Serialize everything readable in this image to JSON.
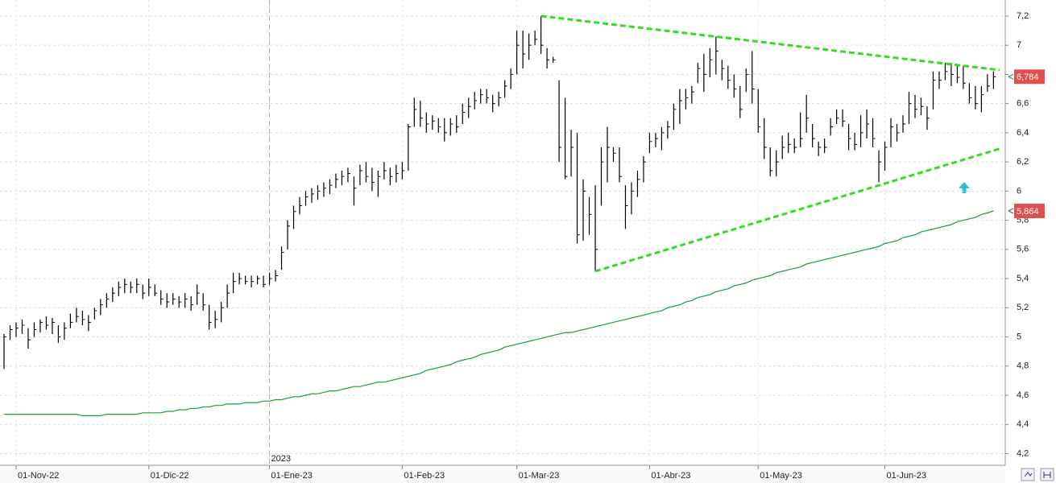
{
  "chart_data": {
    "type": "ohlc",
    "color": "#000000",
    "grid": true,
    "ylim": [
      4.12,
      7.31
    ],
    "yticks": [
      {
        "value": 4.2,
        "label": "4,2"
      },
      {
        "value": 4.4,
        "label": "4,4"
      },
      {
        "value": 4.6,
        "label": "4,6"
      },
      {
        "value": 4.8,
        "label": "4,8"
      },
      5,
      {
        "value": 5.2,
        "label": "5,2"
      },
      {
        "value": 5.4,
        "label": "5,4"
      },
      {
        "value": 5.6,
        "label": "5,6"
      },
      {
        "value": 5.8,
        "label": "5,8"
      },
      6,
      {
        "value": 6.2,
        "label": "6,2"
      },
      {
        "value": 6.4,
        "label": "6,4"
      },
      {
        "value": 6.6,
        "label": "6,6"
      },
      {
        "value": 6.8,
        "label": "6,8"
      },
      7,
      {
        "value": 7.2,
        "label": "7,2"
      }
    ],
    "categories": [
      null,
      null,
      "01-Nov-22",
      null,
      null,
      null,
      null,
      null,
      null,
      null,
      null,
      null,
      null,
      null,
      null,
      null,
      null,
      null,
      null,
      null,
      null,
      null,
      null,
      null,
      "01-Dic-22",
      null,
      null,
      null,
      null,
      null,
      null,
      null,
      null,
      null,
      null,
      null,
      null,
      null,
      null,
      null,
      null,
      null,
      null,
      null,
      "01-Ene-23",
      null,
      null,
      null,
      null,
      null,
      null,
      null,
      null,
      null,
      null,
      null,
      null,
      null,
      null,
      null,
      null,
      null,
      null,
      null,
      null,
      null,
      "01-Feb-23",
      null,
      null,
      null,
      null,
      null,
      null,
      null,
      null,
      null,
      null,
      null,
      null,
      null,
      null,
      null,
      null,
      null,
      null,
      "01-Mar-23",
      null,
      null,
      null,
      null,
      null,
      null,
      null,
      null,
      null,
      null,
      null,
      null,
      null,
      null,
      null,
      null,
      null,
      null,
      null,
      null,
      null,
      "01-Abr-23",
      null,
      null,
      null,
      null,
      null,
      null,
      null,
      null,
      null,
      null,
      null,
      null,
      null,
      null,
      null,
      null,
      null,
      "01-May-23",
      null,
      null,
      null,
      null,
      null,
      null,
      null,
      null,
      null,
      null,
      null,
      null,
      null,
      null,
      null,
      null,
      null,
      null,
      null,
      null,
      "01-Jun-23",
      null,
      null,
      null,
      null,
      null,
      null,
      null,
      null,
      null,
      null,
      null,
      null,
      null,
      null,
      null,
      null,
      null,
      null
    ],
    "high": [
      5.02,
      5.08,
      5.1,
      5.12,
      5.06,
      5.1,
      5.12,
      5.14,
      5.13,
      5.08,
      5.1,
      5.16,
      5.2,
      5.18,
      5.15,
      5.2,
      5.26,
      5.3,
      5.34,
      5.38,
      5.4,
      5.38,
      5.4,
      5.36,
      5.4,
      5.36,
      5.32,
      5.3,
      5.3,
      5.28,
      5.3,
      5.28,
      5.36,
      5.3,
      5.22,
      5.18,
      5.24,
      5.36,
      5.44,
      5.44,
      5.42,
      5.42,
      5.42,
      5.42,
      5.44,
      5.46,
      5.62,
      5.8,
      5.9,
      5.96,
      6.0,
      6.02,
      6.04,
      6.06,
      6.08,
      6.12,
      6.14,
      6.16,
      6.1,
      6.18,
      6.2,
      6.16,
      6.14,
      6.2,
      6.16,
      6.18,
      6.2,
      6.46,
      6.64,
      6.62,
      6.54,
      6.52,
      6.5,
      6.5,
      6.5,
      6.52,
      6.6,
      6.64,
      6.68,
      6.7,
      6.7,
      6.66,
      6.68,
      6.76,
      6.84,
      7.1,
      7.1,
      7.08,
      7.1,
      7.2,
      6.98,
      6.92,
      6.76,
      6.64,
      6.42,
      6.4,
      6.08,
      5.96,
      6.04,
      6.3,
      6.44,
      6.3,
      6.3,
      6.04,
      6.06,
      6.14,
      6.24,
      6.4,
      6.4,
      6.44,
      6.48,
      6.6,
      6.7,
      6.7,
      6.72,
      6.88,
      6.94,
      6.98,
      7.06,
      6.9,
      6.86,
      6.8,
      6.72,
      6.84,
      6.96,
      6.7,
      6.5,
      6.3,
      6.28,
      6.38,
      6.4,
      6.36,
      6.54,
      6.66,
      6.46,
      6.34,
      6.36,
      6.5,
      6.56,
      6.56,
      6.46,
      6.4,
      6.52,
      6.56,
      6.5,
      6.28,
      6.34,
      6.5,
      6.46,
      6.52,
      6.68,
      6.66,
      6.64,
      6.58,
      6.82,
      6.82,
      6.88,
      6.88,
      6.86,
      6.86,
      6.74,
      6.72,
      6.72,
      6.8,
      6.82
    ],
    "low": [
      4.78,
      4.98,
      5.0,
      5.02,
      4.92,
      5.0,
      5.03,
      5.05,
      5.02,
      4.96,
      4.98,
      5.06,
      5.1,
      5.08,
      5.04,
      5.12,
      5.15,
      5.2,
      5.24,
      5.28,
      5.3,
      5.3,
      5.3,
      5.26,
      5.28,
      5.28,
      5.22,
      5.2,
      5.22,
      5.2,
      5.2,
      5.18,
      5.22,
      5.18,
      5.05,
      5.06,
      5.1,
      5.2,
      5.3,
      5.36,
      5.36,
      5.34,
      5.36,
      5.34,
      5.36,
      5.38,
      5.46,
      5.6,
      5.74,
      5.84,
      5.9,
      5.92,
      5.94,
      5.96,
      5.98,
      6.02,
      6.04,
      6.06,
      5.9,
      6.04,
      6.06,
      6.0,
      5.96,
      6.08,
      6.04,
      6.06,
      6.08,
      6.14,
      6.44,
      6.44,
      6.4,
      6.42,
      6.4,
      6.34,
      6.38,
      6.4,
      6.46,
      6.5,
      6.56,
      6.6,
      6.6,
      6.54,
      6.58,
      6.64,
      6.7,
      6.8,
      6.84,
      6.9,
      7.0,
      6.94,
      6.84,
      6.88,
      6.2,
      6.08,
      6.1,
      5.64,
      5.66,
      5.7,
      5.45,
      5.9,
      6.06,
      6.2,
      6.06,
      5.74,
      5.84,
      5.96,
      6.06,
      6.26,
      6.3,
      6.28,
      6.36,
      6.42,
      6.46,
      6.56,
      6.6,
      6.74,
      6.68,
      6.78,
      6.8,
      6.76,
      6.7,
      6.64,
      6.5,
      6.68,
      6.6,
      6.4,
      6.22,
      6.1,
      6.1,
      6.22,
      6.26,
      6.26,
      6.3,
      6.4,
      6.3,
      6.24,
      6.26,
      6.38,
      6.46,
      6.44,
      6.28,
      6.28,
      6.3,
      6.36,
      6.3,
      6.06,
      6.14,
      6.3,
      6.34,
      6.4,
      6.46,
      6.5,
      6.52,
      6.42,
      6.56,
      6.7,
      6.76,
      6.72,
      6.74,
      6.7,
      6.6,
      6.56,
      6.54,
      6.68,
      6.7
    ],
    "close": [
      5.0,
      5.05,
      5.06,
      5.08,
      4.98,
      5.05,
      5.1,
      5.08,
      5.1,
      5.0,
      5.06,
      5.1,
      5.14,
      5.12,
      5.1,
      5.18,
      5.22,
      5.26,
      5.3,
      5.34,
      5.36,
      5.34,
      5.36,
      5.3,
      5.34,
      5.3,
      5.26,
      5.24,
      5.26,
      5.24,
      5.26,
      5.22,
      5.3,
      5.22,
      5.1,
      5.12,
      5.2,
      5.3,
      5.38,
      5.4,
      5.38,
      5.38,
      5.4,
      5.36,
      5.4,
      5.42,
      5.58,
      5.76,
      5.86,
      5.9,
      5.96,
      5.98,
      6.0,
      6.02,
      6.04,
      6.08,
      6.1,
      6.12,
      6.02,
      6.14,
      6.1,
      6.06,
      6.1,
      6.14,
      6.1,
      6.12,
      6.14,
      6.44,
      6.56,
      6.5,
      6.46,
      6.48,
      6.44,
      6.4,
      6.46,
      6.44,
      6.54,
      6.58,
      6.62,
      6.66,
      6.64,
      6.6,
      6.64,
      6.72,
      6.8,
      7.0,
      6.94,
      7.0,
      7.04,
      7.0,
      6.9,
      6.9,
      6.3,
      6.1,
      6.3,
      5.7,
      6.0,
      5.84,
      5.6,
      6.2,
      6.3,
      6.26,
      6.1,
      5.9,
      6.0,
      6.08,
      6.2,
      6.34,
      6.36,
      6.4,
      6.44,
      6.56,
      6.62,
      6.64,
      6.68,
      6.84,
      6.8,
      6.9,
      6.96,
      6.84,
      6.76,
      6.7,
      6.56,
      6.8,
      6.7,
      6.44,
      6.3,
      6.14,
      6.2,
      6.3,
      6.32,
      6.3,
      6.36,
      6.5,
      6.36,
      6.3,
      6.3,
      6.44,
      6.5,
      6.48,
      6.36,
      6.32,
      6.4,
      6.46,
      6.36,
      6.2,
      6.3,
      6.44,
      6.4,
      6.46,
      6.6,
      6.56,
      6.58,
      6.5,
      6.76,
      6.76,
      6.82,
      6.8,
      6.78,
      6.74,
      6.64,
      6.6,
      6.66,
      6.72,
      6.784
    ],
    "moving_average": {
      "color": "#1f9a3c",
      "values": [
        4.47,
        4.47,
        4.47,
        4.47,
        4.47,
        4.47,
        4.47,
        4.47,
        4.47,
        4.47,
        4.47,
        4.47,
        4.47,
        4.46,
        4.46,
        4.46,
        4.46,
        4.47,
        4.47,
        4.47,
        4.47,
        4.47,
        4.47,
        4.48,
        4.48,
        4.48,
        4.48,
        4.49,
        4.49,
        4.5,
        4.5,
        4.51,
        4.51,
        4.52,
        4.52,
        4.53,
        4.53,
        4.54,
        4.54,
        4.54,
        4.55,
        4.55,
        4.55,
        4.56,
        4.56,
        4.57,
        4.57,
        4.58,
        4.59,
        4.59,
        4.6,
        4.61,
        4.61,
        4.62,
        4.63,
        4.63,
        4.64,
        4.65,
        4.66,
        4.66,
        4.67,
        4.68,
        4.69,
        4.69,
        4.7,
        4.71,
        4.72,
        4.73,
        4.74,
        4.75,
        4.77,
        4.78,
        4.79,
        4.8,
        4.81,
        4.83,
        4.84,
        4.85,
        4.86,
        4.88,
        4.89,
        4.9,
        4.91,
        4.93,
        4.94,
        4.95,
        4.96,
        4.97,
        4.98,
        4.99,
        5.0,
        5.01,
        5.02,
        5.03,
        5.03,
        5.04,
        5.05,
        5.06,
        5.07,
        5.08,
        5.09,
        5.1,
        5.11,
        5.12,
        5.13,
        5.14,
        5.15,
        5.16,
        5.17,
        5.18,
        5.2,
        5.21,
        5.22,
        5.24,
        5.25,
        5.27,
        5.28,
        5.29,
        5.31,
        5.32,
        5.33,
        5.35,
        5.36,
        5.37,
        5.39,
        5.4,
        5.41,
        5.42,
        5.44,
        5.45,
        5.46,
        5.47,
        5.48,
        5.5,
        5.51,
        5.52,
        5.53,
        5.54,
        5.55,
        5.56,
        5.57,
        5.58,
        5.59,
        5.6,
        5.61,
        5.62,
        5.64,
        5.65,
        5.66,
        5.68,
        5.69,
        5.7,
        5.72,
        5.73,
        5.74,
        5.75,
        5.76,
        5.77,
        5.79,
        5.8,
        5.81,
        5.82,
        5.84,
        5.85,
        5.864
      ]
    },
    "trendlines": [
      {
        "color": "#33dd22",
        "x": [
          89,
          165
        ],
        "values": [
          7.2,
          6.83
        ]
      },
      {
        "color": "#33dd22",
        "x": [
          98,
          165
        ],
        "values": [
          5.45,
          6.29
        ]
      }
    ],
    "price_labels": [
      {
        "value": 6.784,
        "label": "6,784",
        "color": "#e0504e"
      },
      {
        "value": 5.864,
        "label": "5,864",
        "color": "#e0504e"
      }
    ],
    "year_marker": "2023"
  }
}
